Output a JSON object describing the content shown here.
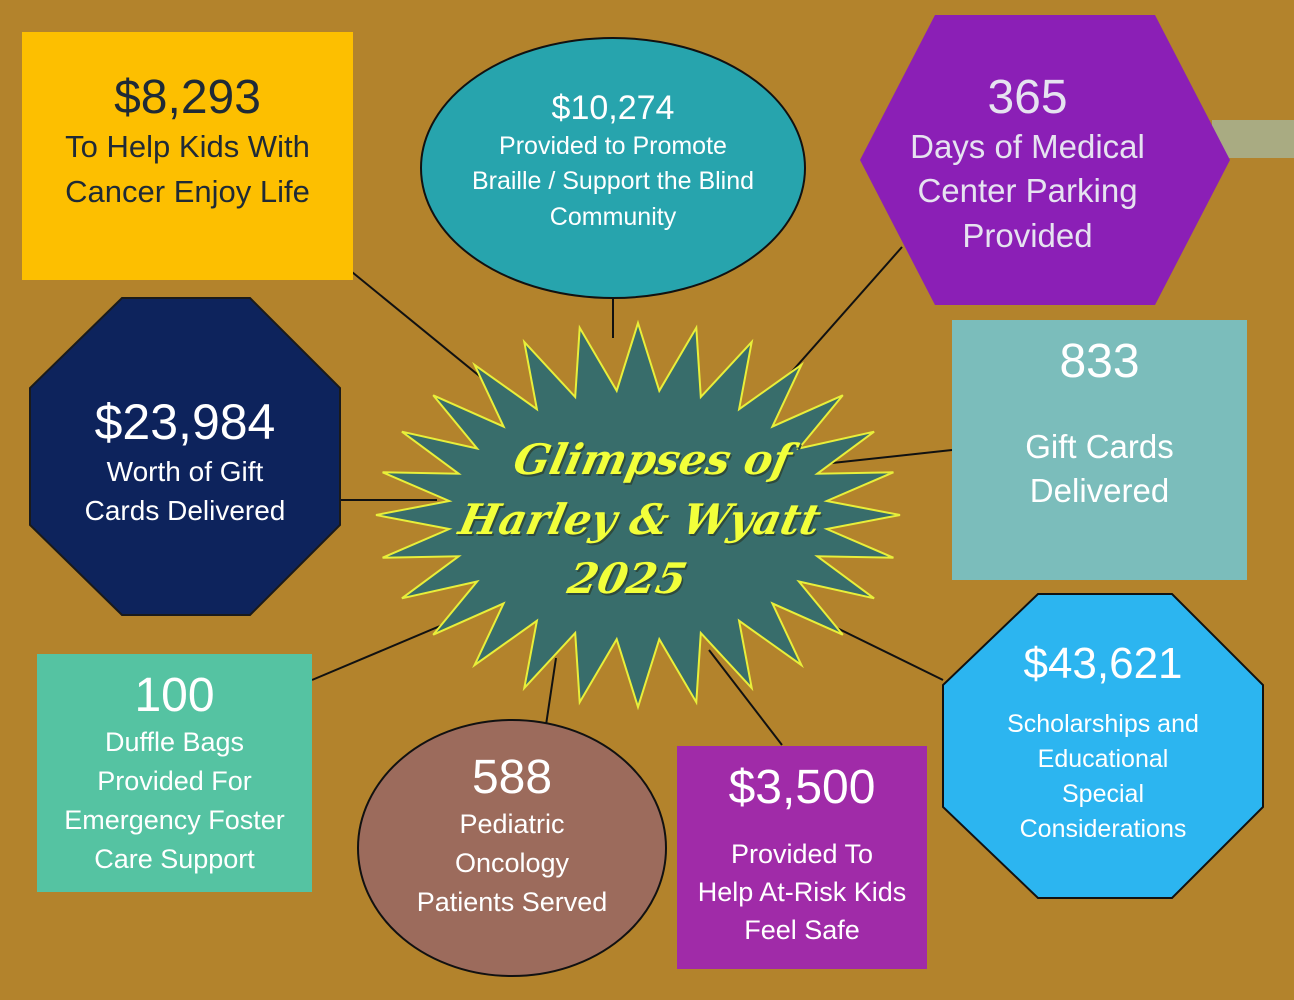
{
  "title": {
    "line1": "Glimpses of",
    "line2": "Harley & Wyatt",
    "line3": "2025"
  },
  "stats": {
    "kids_cancer": {
      "value": "$8,293",
      "line1": "To Help Kids With",
      "line2": "Cancer Enjoy Life"
    },
    "braille": {
      "value": "$10,274",
      "line1": "Provided to Promote",
      "line2": "Braille / Support the Blind",
      "line3": "Community"
    },
    "parking": {
      "value": "365",
      "line1": "Days of Medical",
      "line2": "Center Parking",
      "line3": "Provided"
    },
    "gift_cards_count": {
      "value": "833",
      "line1": "Gift Cards",
      "line2": "Delivered"
    },
    "gift_cards_worth": {
      "value": "$23,984",
      "line1": "Worth of Gift",
      "line2": "Cards Delivered"
    },
    "scholarships": {
      "value": "$43,621",
      "line1": "Scholarships and",
      "line2": "Educational",
      "line3": "Special",
      "line4": "Considerations"
    },
    "duffle_bags": {
      "value": "100",
      "line1": "Duffle Bags",
      "line2": "Provided For",
      "line3": "Emergency Foster",
      "line4": "Care Support"
    },
    "pediatric": {
      "value": "588",
      "line1": "Pediatric",
      "line2": "Oncology",
      "line3": "Patients Served"
    },
    "at_risk": {
      "value": "$3,500",
      "line1": "Provided To",
      "line2": "Help At-Risk Kids",
      "line3": "Feel Safe"
    }
  },
  "colors": {
    "background": "#b3832c",
    "yellow": "#fdbf00",
    "teal_oval": "#27a4ad",
    "purple_hex": "#8b1fb6",
    "light_teal": "#7bbdbb",
    "navy": "#0d235c",
    "sky_blue": "#2cb5f0",
    "green": "#55c3a2",
    "brown_oval": "#9c6b5c",
    "magenta": "#a02ba8",
    "starburst": "#386d6b",
    "title_text": "#f2ff3a"
  }
}
